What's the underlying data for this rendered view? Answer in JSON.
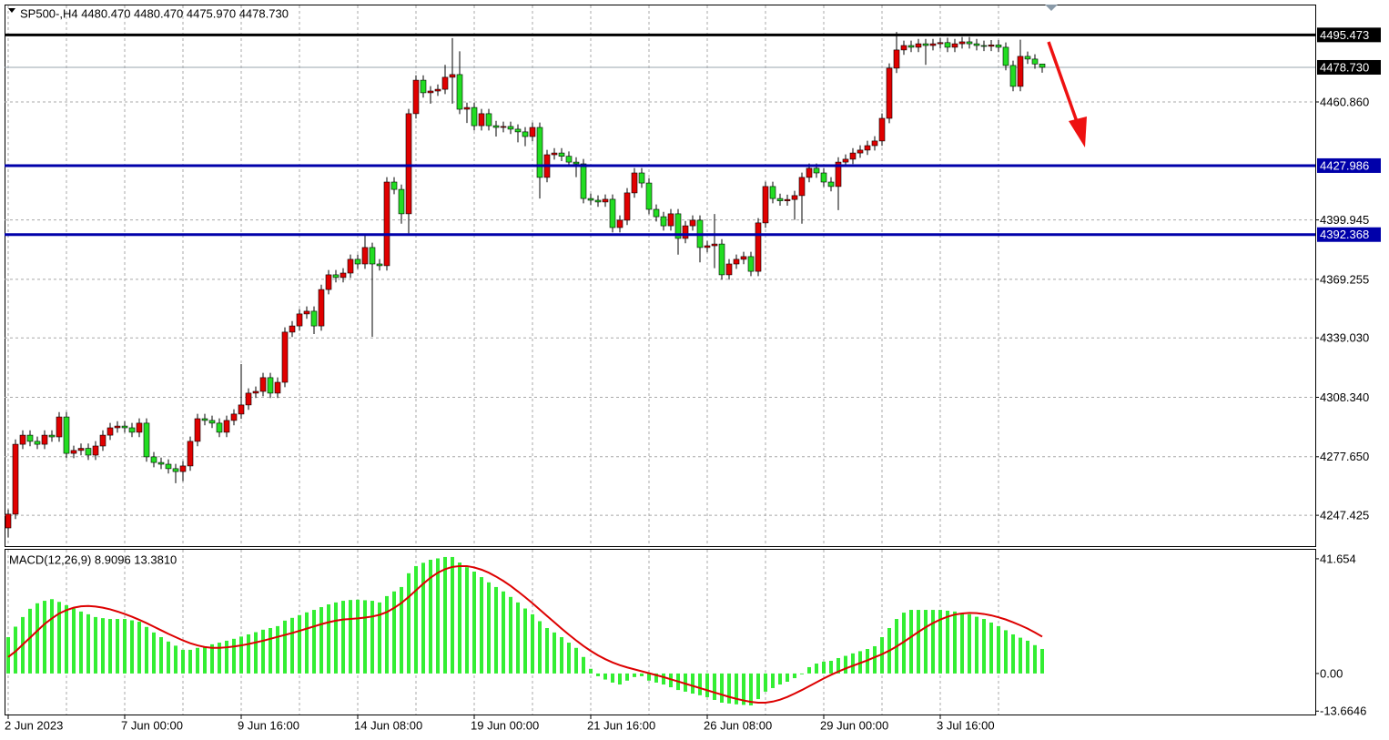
{
  "chart_data": [
    {
      "type": "candlestick",
      "title": "SP500-,H4  4480.470 4480.470 4475.970 4478.730",
      "categories": [
        "2 Jun 2023",
        null,
        null,
        null,
        null,
        null,
        null,
        null,
        null,
        null,
        null,
        null,
        null,
        null,
        null,
        null,
        "7 Jun 00:00",
        null,
        null,
        null,
        null,
        null,
        null,
        null,
        null,
        null,
        null,
        null,
        null,
        null,
        null,
        null,
        "9 Jun 16:00",
        null,
        null,
        null,
        null,
        null,
        null,
        null,
        null,
        null,
        null,
        null,
        null,
        null,
        null,
        null,
        "14 Jun 08:00",
        null,
        null,
        null,
        null,
        null,
        null,
        null,
        null,
        null,
        null,
        null,
        null,
        null,
        null,
        null,
        "19 Jun 00:00",
        null,
        null,
        null,
        null,
        null,
        null,
        null,
        null,
        null,
        null,
        null,
        null,
        null,
        null,
        null,
        "21 Jun 16:00",
        null,
        null,
        null,
        null,
        null,
        null,
        null,
        null,
        null,
        null,
        null,
        null,
        null,
        null,
        null,
        "26 Jun 08:00",
        null,
        null,
        null,
        null,
        null,
        null,
        null,
        null,
        null,
        null,
        null,
        null,
        null,
        null,
        null,
        "29 Jun 00:00",
        null,
        null,
        null,
        null,
        null,
        null,
        null,
        null,
        null,
        null,
        null,
        null,
        null,
        null,
        null,
        "3 Jul 16:00",
        null,
        null,
        null,
        null,
        null,
        null,
        null,
        null,
        null,
        null,
        null,
        null,
        null,
        null
      ],
      "open": [
        4240.9,
        4248.0,
        4284.1,
        4288.8,
        4285.6,
        4284.1,
        4288.8,
        4287.9,
        4298.2,
        4279.4,
        4280.9,
        4282.0,
        4278.5,
        4283.2,
        4288.8,
        4292.6,
        4293.5,
        4292.6,
        4290.3,
        4295.0,
        4277.6,
        4274.7,
        4273.8,
        4271.5,
        4270.0,
        4272.9,
        4285.6,
        4297.3,
        4296.4,
        4295.0,
        4290.3,
        4296.4,
        4299.7,
        4304.4,
        4310.5,
        4311.4,
        4318.5,
        4310.5,
        4316.1,
        4342.0,
        4345.2,
        4351.4,
        4352.8,
        4345.2,
        4364.0,
        4371.6,
        4370.2,
        4372.5,
        4379.6,
        4377.2,
        4385.7,
        4377.2,
        4376.3,
        4419.5,
        4415.7,
        4403.1,
        4454.8,
        4472.1,
        4465.6,
        4466.5,
        4467.4,
        4473.6,
        4475.0,
        4457.1,
        4458.0,
        4448.6,
        4454.8,
        4448.6,
        4447.7,
        4448.2,
        4446.8,
        4445.4,
        4443.0,
        4447.7,
        4421.9,
        4433.6,
        4434.5,
        4432.8,
        4429.8,
        4428.9,
        4411.0,
        4410.1,
        4409.2,
        4410.6,
        4396.0,
        4399.8,
        4413.9,
        4424.2,
        4419.0,
        4405.4,
        4401.6,
        4396.9,
        4403.1,
        4390.4,
        4396.9,
        4399.8,
        4385.7,
        4386.6,
        4387.5,
        4371.6,
        4377.2,
        4379.6,
        4381.0,
        4373.4,
        4398.4,
        4417.2,
        4411.0,
        4409.8,
        4410.5,
        4412.5,
        4421.9,
        4426.6,
        4424.2,
        4419.5,
        4417.2,
        4429.8,
        4431.3,
        4434.5,
        4436.0,
        4438.3,
        4440.7,
        4452.4,
        4478.3,
        4487.7,
        4490.0,
        4489.1,
        4490.9,
        4490.0,
        4490.9,
        4491.5,
        4489.1,
        4490.9,
        4491.9,
        4490.9,
        4490.0,
        4489.6,
        4490.3,
        4489.1,
        4479.7,
        4468.9,
        4484.4,
        4483.0,
        4480.47
      ],
      "high": [
        4250.5,
        4286.6,
        4291.3,
        4291.3,
        4288.1,
        4291.3,
        4291.3,
        4300.7,
        4300.7,
        4283.4,
        4284.5,
        4284.5,
        4285.7,
        4291.3,
        4295.1,
        4296.0,
        4296.0,
        4295.1,
        4297.5,
        4297.5,
        4280.1,
        4277.2,
        4276.3,
        4274.0,
        4275.4,
        4288.1,
        4299.8,
        4299.8,
        4298.9,
        4297.5,
        4298.9,
        4302.2,
        4325.5,
        4313.0,
        4313.9,
        4321.0,
        4321.0,
        4318.6,
        4344.5,
        4347.7,
        4353.9,
        4355.3,
        4355.3,
        4366.5,
        4374.1,
        4374.1,
        4375.0,
        4382.1,
        4382.1,
        4392.0,
        4388.2,
        4379.7,
        4422.0,
        4422.0,
        4418.2,
        4457.3,
        4474.6,
        4474.6,
        4469.0,
        4469.9,
        4480.0,
        4493.8,
        4487.0,
        4460.5,
        4460.5,
        4457.3,
        4457.3,
        4451.1,
        4450.7,
        4450.7,
        4449.3,
        4447.9,
        4450.2,
        4450.2,
        4436.1,
        4437.0,
        4437.0,
        4435.3,
        4432.3,
        4431.4,
        4413.5,
        4412.6,
        4413.1,
        4413.1,
        4402.3,
        4416.4,
        4426.7,
        4426.7,
        4421.5,
        4407.9,
        4404.1,
        4405.6,
        4405.6,
        4399.4,
        4402.3,
        4402.3,
        4389.1,
        4403.0,
        4390.0,
        4379.7,
        4382.1,
        4383.5,
        4383.5,
        4400.9,
        4419.7,
        4419.7,
        4413.5,
        4413.0,
        4415.0,
        4424.4,
        4429.1,
        4429.1,
        4426.7,
        4422.0,
        4432.3,
        4433.8,
        4437.0,
        4438.5,
        4440.8,
        4443.2,
        4454.9,
        4480.8,
        4497.0,
        4492.5,
        4492.5,
        4493.4,
        4493.4,
        4493.4,
        4494.0,
        4494.0,
        4493.4,
        4494.4,
        4494.4,
        4493.4,
        4492.5,
        4492.8,
        4492.8,
        4491.6,
        4482.2,
        4493.0,
        4486.9,
        4485.5,
        4480.47
      ],
      "low": [
        4236.0,
        4245.5,
        4281.6,
        4283.1,
        4281.6,
        4281.6,
        4285.4,
        4285.4,
        4276.9,
        4276.9,
        4278.4,
        4276.0,
        4276.0,
        4280.7,
        4286.3,
        4290.1,
        4290.1,
        4287.8,
        4287.8,
        4275.1,
        4272.2,
        4271.3,
        4269.0,
        4264.0,
        4265.0,
        4270.4,
        4283.1,
        4293.9,
        4292.5,
        4287.8,
        4287.8,
        4293.9,
        4297.2,
        4301.9,
        4308.0,
        4308.9,
        4308.0,
        4308.0,
        4313.6,
        4339.5,
        4342.7,
        4348.9,
        4341.0,
        4342.7,
        4361.5,
        4367.7,
        4367.7,
        4370.0,
        4374.7,
        4374.7,
        4339.6,
        4373.8,
        4373.8,
        4413.2,
        4398.0,
        4393.0,
        4452.3,
        4463.1,
        4460.0,
        4464.0,
        4464.9,
        4460.0,
        4454.6,
        4450.0,
        4446.1,
        4446.1,
        4446.1,
        4443.0,
        4445.2,
        4444.3,
        4440.0,
        4438.0,
        4440.5,
        4411.0,
        4419.4,
        4431.1,
        4430.3,
        4427.3,
        4422.0,
        4408.5,
        4407.6,
        4406.7,
        4406.7,
        4393.5,
        4393.5,
        4397.3,
        4411.4,
        4416.5,
        4402.9,
        4399.1,
        4394.4,
        4394.4,
        4382.0,
        4387.9,
        4394.4,
        4378.0,
        4383.2,
        4375.0,
        4369.1,
        4369.1,
        4374.7,
        4377.1,
        4370.9,
        4370.9,
        4395.9,
        4408.5,
        4407.3,
        4407.3,
        4400.0,
        4398.0,
        4419.4,
        4421.7,
        4417.0,
        4414.7,
        4405.0,
        4427.3,
        4428.8,
        4432.0,
        4433.5,
        4435.8,
        4438.2,
        4449.9,
        4475.8,
        4485.2,
        4486.6,
        4486.6,
        4480.0,
        4487.5,
        4488.4,
        4486.6,
        4486.6,
        4488.4,
        4488.4,
        4487.5,
        4487.1,
        4487.1,
        4486.6,
        4477.2,
        4466.4,
        4466.4,
        4480.5,
        4478.0,
        4475.97
      ],
      "close": [
        4248.0,
        4284.1,
        4288.8,
        4285.6,
        4284.1,
        4288.8,
        4287.9,
        4298.2,
        4279.4,
        4280.9,
        4282.0,
        4278.5,
        4283.2,
        4288.8,
        4292.6,
        4293.5,
        4292.6,
        4290.3,
        4295.0,
        4277.6,
        4274.7,
        4273.8,
        4271.5,
        4270.0,
        4272.9,
        4285.6,
        4297.3,
        4296.4,
        4295.0,
        4290.3,
        4296.4,
        4299.7,
        4304.4,
        4310.5,
        4311.4,
        4318.5,
        4310.5,
        4316.1,
        4342.0,
        4345.2,
        4351.4,
        4352.8,
        4345.2,
        4364.0,
        4371.6,
        4370.2,
        4372.5,
        4379.6,
        4377.2,
        4385.7,
        4377.2,
        4376.3,
        4419.5,
        4415.7,
        4403.1,
        4454.8,
        4472.1,
        4465.6,
        4466.5,
        4467.4,
        4473.6,
        4475.0,
        4457.1,
        4458.0,
        4448.6,
        4454.8,
        4448.6,
        4447.7,
        4448.2,
        4446.8,
        4445.4,
        4443.0,
        4447.7,
        4421.9,
        4433.6,
        4434.5,
        4432.8,
        4429.8,
        4428.9,
        4411.0,
        4410.1,
        4409.2,
        4410.6,
        4396.0,
        4399.8,
        4413.9,
        4424.2,
        4419.0,
        4405.4,
        4401.6,
        4396.9,
        4403.1,
        4390.4,
        4396.9,
        4399.8,
        4385.7,
        4386.6,
        4387.5,
        4371.6,
        4377.2,
        4379.6,
        4381.0,
        4373.4,
        4398.4,
        4417.2,
        4411.0,
        4409.8,
        4410.5,
        4412.5,
        4421.9,
        4426.6,
        4424.2,
        4419.5,
        4417.2,
        4429.8,
        4431.3,
        4434.5,
        4436.0,
        4438.3,
        4440.7,
        4452.4,
        4478.3,
        4487.7,
        4490.0,
        4489.1,
        4490.9,
        4490.0,
        4490.9,
        4491.5,
        4489.1,
        4490.9,
        4491.9,
        4490.9,
        4490.0,
        4489.6,
        4490.3,
        4489.1,
        4479.7,
        4468.9,
        4484.4,
        4483.0,
        4480.47,
        4478.73
      ],
      "up_color": "#e00000",
      "down_color": "#22dd22",
      "ylim": [
        4231.5,
        4511.15
      ],
      "yticks": [
        {
          "value": 4460.86,
          "label": "4460.860"
        },
        4399.945,
        4369.255,
        {
          "value": 4339.03,
          "label": "4339.030"
        },
        {
          "value": 4308.34,
          "label": "4308.340"
        },
        {
          "value": 4277.65,
          "label": "4277.650"
        },
        4247.425
      ],
      "grid": true,
      "levels": [
        {
          "value": 4495.473,
          "color": "#000000"
        },
        {
          "value": 4427.986,
          "color": "#0000aa"
        },
        {
          "value": 4392.368,
          "color": "#0000aa"
        }
      ],
      "current": {
        "value": 4478.73,
        "label": "4478.730"
      }
    },
    {
      "type": "macd",
      "title": "MACD(12,26,9) 8.9096 13.3810",
      "values": [
        13.2,
        17.0,
        20.5,
        23.5,
        25.5,
        26.4,
        27.0,
        26.0,
        24.8,
        23.6,
        22.5,
        21.5,
        20.5,
        20.1,
        19.8,
        19.8,
        19.8,
        19.3,
        18.8,
        16.9,
        14.9,
        13.2,
        11.6,
        10.1,
        8.6,
        8.6,
        9.3,
        9.9,
        10.6,
        11.2,
        11.9,
        12.6,
        13.4,
        14.2,
        15.0,
        15.9,
        16.5,
        17.2,
        19.2,
        20.2,
        21.2,
        22.2,
        23.1,
        24.1,
        25.1,
        25.8,
        26.4,
        26.7,
        26.8,
        26.6,
        26.4,
        25.8,
        28.1,
        29.8,
        31.4,
        36.4,
        39.0,
        40.2,
        41.3,
        41.8,
        42.3,
        42.3,
        40.3,
        38.6,
        37.0,
        35.0,
        33.1,
        31.4,
        29.8,
        27.8,
        25.8,
        23.6,
        21.5,
        19.0,
        16.5,
        14.9,
        13.2,
        11.2,
        9.3,
        6.0,
        1.7,
        -1.0,
        -2.2,
        -3.3,
        -4.0,
        -2.6,
        -1.3,
        -1.0,
        -2.6,
        -3.3,
        -4.0,
        -5.0,
        -6.0,
        -6.6,
        -7.3,
        -7.9,
        -8.6,
        -9.6,
        -10.6,
        -10.9,
        -11.2,
        -11.4,
        -11.6,
        -9.3,
        -6.6,
        -5.3,
        -4.0,
        -3.0,
        -1.7,
        -0.3,
        2.3,
        3.6,
        4.3,
        4.6,
        5.6,
        6.4,
        7.3,
        8.1,
        8.9,
        9.9,
        13.2,
        16.5,
        19.8,
        22.1,
        23.1,
        23.1,
        23.1,
        23.1,
        23.1,
        22.8,
        22.5,
        22.0,
        21.5,
        20.6,
        19.8,
        18.5,
        17.2,
        15.7,
        14.2,
        13.0,
        11.9,
        10.3,
        8.9096
      ],
      "color": "#33ee33",
      "signal": [
        6.0,
        8.0,
        10.5,
        13.0,
        15.5,
        18.0,
        20.0,
        21.8,
        23.0,
        23.9,
        24.4,
        24.5,
        24.3,
        23.9,
        23.3,
        22.5,
        21.6,
        20.6,
        19.5,
        18.3,
        17.0,
        15.7,
        14.4,
        13.2,
        12.0,
        11.0,
        10.2,
        9.6,
        9.3,
        9.3,
        9.5,
        9.8,
        10.2,
        10.7,
        11.3,
        11.9,
        12.6,
        13.3,
        14.0,
        14.7,
        15.5,
        16.3,
        17.1,
        17.9,
        18.6,
        19.2,
        19.6,
        19.8,
        20.0,
        20.3,
        20.7,
        21.3,
        22.3,
        23.8,
        25.6,
        27.8,
        30.2,
        32.6,
        34.8,
        36.6,
        37.9,
        38.7,
        39.0,
        39.0,
        38.5,
        37.7,
        36.6,
        35.2,
        33.6,
        31.8,
        29.8,
        27.7,
        25.5,
        23.2,
        20.9,
        18.6,
        16.3,
        14.1,
        12.0,
        10.0,
        8.2,
        6.6,
        5.2,
        4.0,
        3.0,
        2.2,
        1.5,
        0.8,
        0.1,
        -0.6,
        -1.3,
        -2.1,
        -2.9,
        -3.7,
        -4.5,
        -5.3,
        -6.1,
        -6.9,
        -7.7,
        -8.5,
        -9.2,
        -9.8,
        -10.3,
        -10.6,
        -10.6,
        -10.2,
        -9.5,
        -8.5,
        -7.3,
        -6.0,
        -4.6,
        -3.2,
        -1.8,
        -0.5,
        0.7,
        1.8,
        2.8,
        3.8,
        4.8,
        5.9,
        7.0,
        8.3,
        9.8,
        11.5,
        13.3,
        15.1,
        16.8,
        18.3,
        19.6,
        20.6,
        21.4,
        21.8,
        22.0,
        21.9,
        21.6,
        21.1,
        20.4,
        19.6,
        18.6,
        17.5,
        16.3,
        14.9,
        13.381
      ],
      "signal_color": "#dd0000",
      "ylim": [
        -14.9,
        44.6
      ],
      "yticks": [
        41.654,
        {
          "value": 0,
          "label": "0.00"
        },
        -13.6646
      ]
    }
  ]
}
